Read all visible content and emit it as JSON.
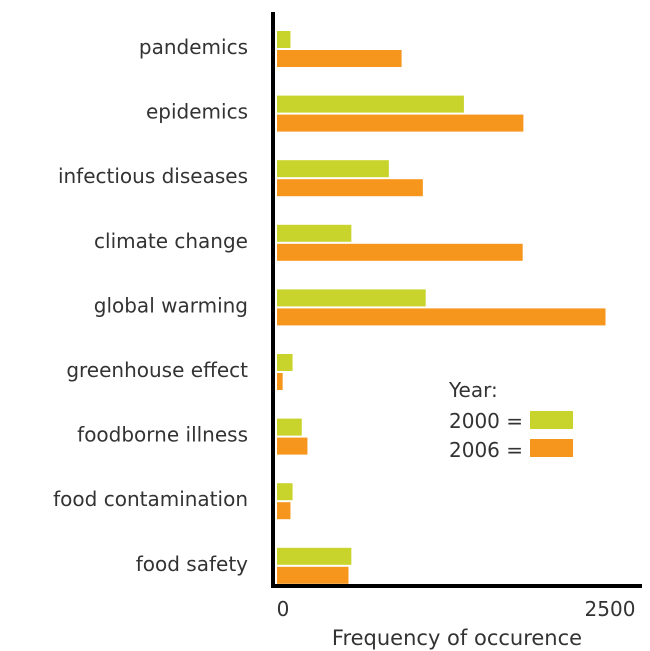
{
  "chart_data": {
    "type": "bar",
    "orientation": "horizontal",
    "categories": [
      "pandemics",
      "epidemics",
      "infectious diseases",
      "climate change",
      "global warming",
      "greenhouse effect",
      "foodborne illness",
      "food contamination",
      "food safety"
    ],
    "series": [
      {
        "name": "2000",
        "color": "#c8d42c",
        "values": [
          95,
          1320,
          790,
          525,
          1050,
          110,
          175,
          110,
          525
        ]
      },
      {
        "name": "2006",
        "color": "#f7961d",
        "values": [
          880,
          1740,
          1030,
          1735,
          2320,
          40,
          215,
          95,
          505
        ]
      }
    ],
    "xlim": [
      0,
      2500
    ],
    "x_ticks": [
      "0",
      "2500"
    ],
    "xlabel": "Frequency of occurence",
    "ylabel": "",
    "title": "",
    "grid": false,
    "legend": {
      "title": "Year:",
      "position": "right",
      "entries": [
        "2000 =",
        "2006 ="
      ]
    }
  }
}
